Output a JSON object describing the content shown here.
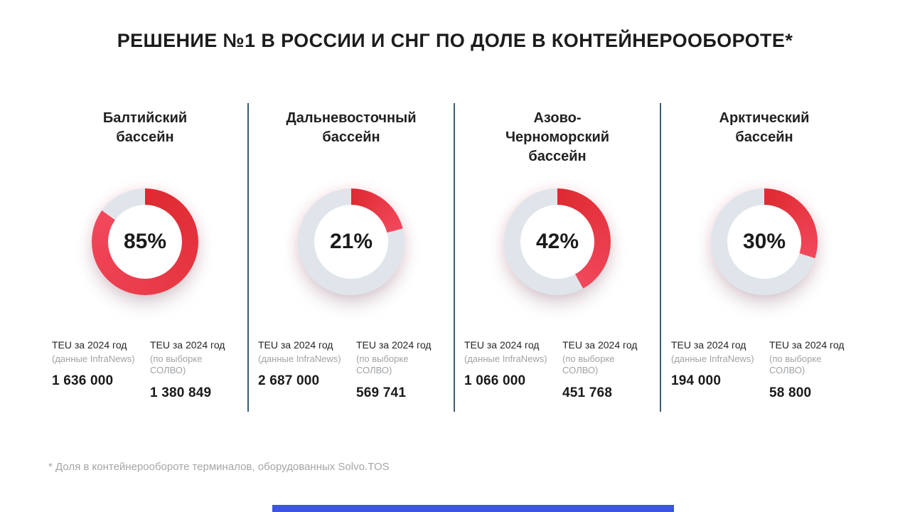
{
  "title": "РЕШЕНИЕ №1 В РОССИИ И СНГ ПО ДОЛЕ В КОНТЕЙНЕРООБОРОТЕ*",
  "footnote": "* Доля в контейнерообороте терминалов,  оборудованных Solvo.TOS",
  "colors": {
    "arc_red_start": "#DE2A31",
    "arc_red_end": "#F2485C",
    "track_gray": "#E0E5EB",
    "divider_blue": "#3A5E74",
    "footer_bar_blue": "#3C55DC",
    "muted_gray": "#9FA3A7"
  },
  "labels": {
    "teu_infranews_title": "TEU за 2024 год",
    "teu_infranews_sub": "(данные InfraNews)",
    "teu_solvo_title": "TEU за 2024 год",
    "teu_solvo_sub": "(по выборке СОЛВО)"
  },
  "chart_data": {
    "type": "pie",
    "variant": "donut-progress",
    "title": "РЕШЕНИЕ №1 В РОССИИ И СНГ ПО ДОЛЕ В КОНТЕЙНЕРООБОРОТЕ*",
    "categories": [
      "Балтийский бассейн",
      "Дальневосточный бассейн",
      "Азово-Черноморский бассейн",
      "Арктический бассейн"
    ],
    "values": [
      85,
      21,
      42,
      30
    ],
    "value_unit": "% доля в контейнерообороте",
    "series": [
      {
        "name": "TEU за 2024 год (данные InfraNews)",
        "values": [
          1636000,
          2687000,
          1066000,
          194000
        ]
      },
      {
        "name": "TEU за 2024 год (по выборке СОЛВО)",
        "values": [
          1380849,
          569741,
          451768,
          58800
        ]
      }
    ]
  },
  "basins": [
    {
      "display_name": "Балтийский\nбассейн",
      "share_label": "85%",
      "teu_infranews": "1 636 000",
      "teu_solvo": "1 380 849"
    },
    {
      "display_name": "Дальневосточный\nбассейн",
      "share_label": "21%",
      "teu_infranews": "2 687 000",
      "teu_solvo": "569 741"
    },
    {
      "display_name": "Азово-\nЧерноморский\nбассейн",
      "share_label": "42%",
      "teu_infranews": "1 066 000",
      "teu_solvo": "451 768"
    },
    {
      "display_name": "Арктический\nбассейн",
      "share_label": "30%",
      "teu_infranews": "194 000",
      "teu_solvo": "58 800"
    }
  ]
}
